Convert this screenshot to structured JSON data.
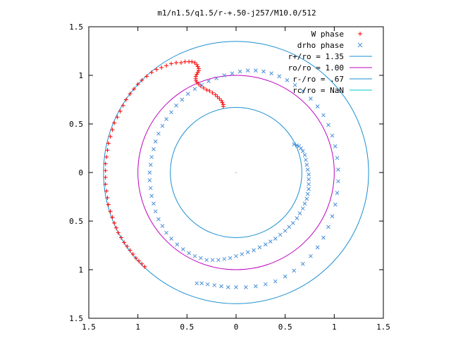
{
  "chart_data": {
    "type": "scatter",
    "title": "m1/n1.5/q1.5/r-+.50-j257/M10.0/512",
    "xlim": [
      -1.5,
      1.5
    ],
    "ylim": [
      -1.5,
      1.5
    ],
    "x_ticks": [
      -1.5,
      -1,
      -0.5,
      0,
      0.5,
      1,
      1.5
    ],
    "y_ticks": [
      -1.5,
      -1,
      -0.5,
      0,
      0.5,
      1,
      1.5
    ],
    "x_tick_labels": [
      "1.5",
      "1",
      "0.5",
      "0",
      "0.5",
      "1",
      "1.5"
    ],
    "y_tick_labels": [
      "1.5",
      "1",
      "0.5",
      "0",
      "0.5",
      "1",
      "1.5"
    ],
    "legend_position": "top-right",
    "grid": false,
    "series": [
      {
        "name": "W phase",
        "marker": "plus",
        "color": "#ff0000",
        "points": [
          [
            -0.93,
            -0.97
          ],
          [
            -0.96,
            -0.94
          ],
          [
            -0.99,
            -0.91
          ],
          [
            -1.02,
            -0.88
          ],
          [
            -1.05,
            -0.84
          ],
          [
            -1.08,
            -0.8
          ],
          [
            -1.11,
            -0.76
          ],
          [
            -1.14,
            -0.72
          ],
          [
            -1.17,
            -0.67
          ],
          [
            -1.2,
            -0.62
          ],
          [
            -1.22,
            -0.57
          ],
          [
            -1.24,
            -0.52
          ],
          [
            -1.26,
            -0.46
          ],
          [
            -1.28,
            -0.4
          ],
          [
            -1.3,
            -0.33
          ],
          [
            -1.31,
            -0.26
          ],
          [
            -1.32,
            -0.19
          ],
          [
            -1.33,
            -0.12
          ],
          [
            -1.33,
            -0.05
          ],
          [
            -1.33,
            0.02
          ],
          [
            -1.33,
            0.09
          ],
          [
            -1.32,
            0.16
          ],
          [
            -1.31,
            0.23
          ],
          [
            -1.3,
            0.3
          ],
          [
            -1.28,
            0.37
          ],
          [
            -1.26,
            0.44
          ],
          [
            -1.24,
            0.51
          ],
          [
            -1.21,
            0.57
          ],
          [
            -1.18,
            0.63
          ],
          [
            -1.15,
            0.69
          ],
          [
            -1.12,
            0.75
          ],
          [
            -1.08,
            0.81
          ],
          [
            -1.04,
            0.86
          ],
          [
            -1.0,
            0.91
          ],
          [
            -0.96,
            0.95
          ],
          [
            -0.91,
            0.99
          ],
          [
            -0.86,
            1.03
          ],
          [
            -0.81,
            1.06
          ],
          [
            -0.76,
            1.08
          ],
          [
            -0.71,
            1.1
          ],
          [
            -0.66,
            1.12
          ],
          [
            -0.61,
            1.13
          ],
          [
            -0.56,
            1.13
          ],
          [
            -0.52,
            1.14
          ],
          [
            -0.48,
            1.14
          ],
          [
            -0.45,
            1.14
          ],
          [
            -0.42,
            1.13
          ],
          [
            -0.4,
            1.11
          ],
          [
            -0.39,
            1.09
          ],
          [
            -0.38,
            1.07
          ],
          [
            -0.38,
            1.05
          ],
          [
            -0.39,
            1.03
          ],
          [
            -0.4,
            1.01
          ],
          [
            -0.41,
            0.99
          ],
          [
            -0.41,
            0.97
          ],
          [
            -0.41,
            0.95
          ],
          [
            -0.4,
            0.93
          ],
          [
            -0.38,
            0.91
          ],
          [
            -0.36,
            0.89
          ],
          [
            -0.33,
            0.87
          ],
          [
            -0.3,
            0.85
          ],
          [
            -0.27,
            0.84
          ],
          [
            -0.24,
            0.82
          ],
          [
            -0.21,
            0.8
          ],
          [
            -0.19,
            0.78
          ],
          [
            -0.17,
            0.76
          ],
          [
            -0.15,
            0.74
          ],
          [
            -0.14,
            0.72
          ],
          [
            -0.13,
            0.7
          ],
          [
            -0.13,
            0.68
          ]
        ]
      },
      {
        "name": "drho phase",
        "marker": "cross",
        "color": "#4a90d9",
        "points": [
          [
            0.59,
            0.29
          ],
          [
            0.62,
            0.28
          ],
          [
            0.64,
            0.27
          ],
          [
            0.66,
            0.25
          ],
          [
            0.68,
            0.22
          ],
          [
            0.7,
            0.18
          ],
          [
            0.71,
            0.13
          ],
          [
            0.72,
            0.08
          ],
          [
            0.73,
            0.03
          ],
          [
            0.74,
            -0.02
          ],
          [
            0.74,
            -0.07
          ],
          [
            0.74,
            -0.12
          ],
          [
            0.74,
            -0.17
          ],
          [
            0.73,
            -0.22
          ],
          [
            0.72,
            -0.27
          ],
          [
            0.7,
            -0.32
          ],
          [
            0.68,
            -0.37
          ],
          [
            0.65,
            -0.42
          ],
          [
            0.62,
            -0.47
          ],
          [
            0.58,
            -0.52
          ],
          [
            0.54,
            -0.56
          ],
          [
            0.5,
            -0.6
          ],
          [
            0.45,
            -0.64
          ],
          [
            0.4,
            -0.68
          ],
          [
            0.35,
            -0.71
          ],
          [
            0.3,
            -0.74
          ],
          [
            0.24,
            -0.77
          ],
          [
            0.18,
            -0.8
          ],
          [
            0.12,
            -0.82
          ],
          [
            0.06,
            -0.84
          ],
          [
            0.0,
            -0.86
          ],
          [
            -0.06,
            -0.88
          ],
          [
            -0.12,
            -0.89
          ],
          [
            -0.18,
            -0.9
          ],
          [
            -0.24,
            -0.9
          ],
          [
            -0.3,
            -0.9
          ],
          [
            -0.36,
            -0.88
          ],
          [
            -0.42,
            -0.86
          ],
          [
            -0.48,
            -0.83
          ],
          [
            -0.54,
            -0.79
          ],
          [
            -0.6,
            -0.74
          ],
          [
            -0.66,
            -0.68
          ],
          [
            -0.71,
            -0.62
          ],
          [
            -0.75,
            -0.55
          ],
          [
            -0.79,
            -0.48
          ],
          [
            -0.82,
            -0.4
          ],
          [
            -0.84,
            -0.32
          ],
          [
            -0.86,
            -0.24
          ],
          [
            -0.87,
            -0.16
          ],
          [
            -0.88,
            -0.08
          ],
          [
            -0.88,
            0.0
          ],
          [
            -0.87,
            0.08
          ],
          [
            -0.86,
            0.16
          ],
          [
            -0.84,
            0.24
          ],
          [
            -0.82,
            0.32
          ],
          [
            -0.79,
            0.4
          ],
          [
            -0.75,
            0.48
          ],
          [
            -0.71,
            0.55
          ],
          [
            -0.66,
            0.62
          ],
          [
            -0.61,
            0.69
          ],
          [
            -0.55,
            0.75
          ],
          [
            -0.49,
            0.81
          ],
          [
            -0.42,
            0.86
          ],
          [
            -0.35,
            0.9
          ],
          [
            -0.28,
            0.94
          ],
          [
            -0.2,
            0.97
          ],
          [
            -0.12,
            1.0
          ],
          [
            -0.04,
            1.02
          ],
          [
            0.04,
            1.04
          ],
          [
            0.12,
            1.05
          ],
          [
            0.2,
            1.05
          ],
          [
            0.28,
            1.04
          ],
          [
            0.36,
            1.02
          ],
          [
            0.44,
            0.99
          ],
          [
            0.52,
            0.95
          ],
          [
            0.6,
            0.9
          ],
          [
            0.68,
            0.84
          ],
          [
            0.76,
            0.76
          ],
          [
            0.83,
            0.68
          ],
          [
            0.89,
            0.59
          ],
          [
            0.94,
            0.49
          ],
          [
            0.98,
            0.38
          ],
          [
            1.01,
            0.27
          ],
          [
            1.03,
            0.15
          ],
          [
            1.04,
            0.03
          ],
          [
            1.04,
            -0.09
          ],
          [
            1.03,
            -0.21
          ],
          [
            1.01,
            -0.33
          ],
          [
            0.98,
            -0.45
          ],
          [
            0.94,
            -0.56
          ],
          [
            0.89,
            -0.67
          ],
          [
            0.83,
            -0.77
          ],
          [
            0.76,
            -0.86
          ],
          [
            0.68,
            -0.94
          ],
          [
            0.59,
            -1.01
          ],
          [
            0.5,
            -1.07
          ],
          [
            0.4,
            -1.12
          ],
          [
            0.3,
            -1.15
          ],
          [
            0.2,
            -1.17
          ],
          [
            0.1,
            -1.18
          ],
          [
            0.0,
            -1.18
          ],
          [
            -0.08,
            -1.18
          ],
          [
            -0.15,
            -1.17
          ],
          [
            -0.22,
            -1.16
          ],
          [
            -0.29,
            -1.15
          ],
          [
            -0.35,
            -1.14
          ],
          [
            -0.4,
            -1.14
          ]
        ]
      },
      {
        "name": "r+/ro = 1.35",
        "type": "circle",
        "radius": 1.35,
        "color": "#1a8fd0"
      },
      {
        "name": "ro/ro = 1.00",
        "type": "circle",
        "radius": 1.0,
        "color": "#c000c0"
      },
      {
        "name": "r-/ro = .67",
        "type": "circle",
        "radius": 0.67,
        "color": "#1a8fd0"
      },
      {
        "name": "rc/ro = NaN",
        "type": "circle",
        "radius": null,
        "color": "#00c8c8"
      }
    ]
  }
}
